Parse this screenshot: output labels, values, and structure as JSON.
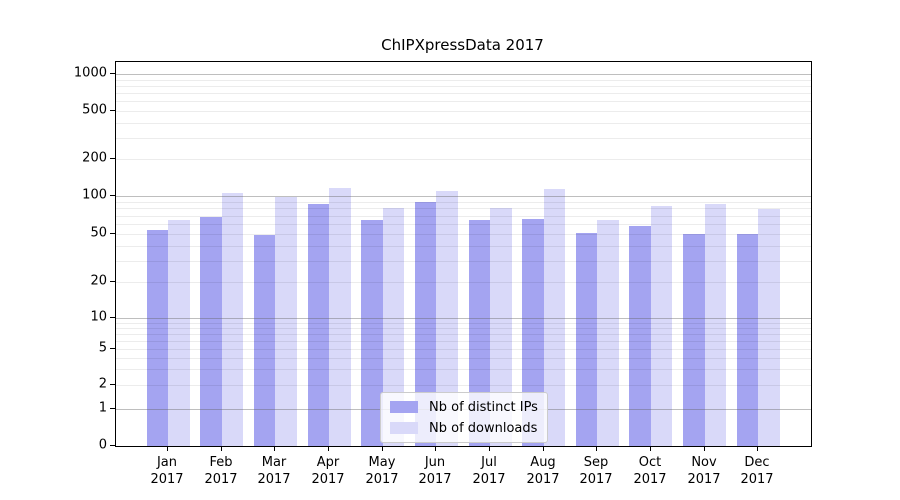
{
  "chart_data": {
    "type": "bar",
    "title": "ChIPXpressData 2017",
    "year_label": "2017",
    "categories": [
      "Jan",
      "Feb",
      "Mar",
      "Apr",
      "May",
      "Jun",
      "Jul",
      "Aug",
      "Sep",
      "Oct",
      "Nov",
      "Dec"
    ],
    "series": [
      {
        "name": "Nb of distinct IPs",
        "color": "#a4a4f1",
        "values": [
          54,
          68,
          49,
          87,
          64,
          89,
          64,
          66,
          51,
          58,
          50,
          50
        ]
      },
      {
        "name": "Nb of downloads",
        "color": "#d9d9f9",
        "values": [
          65,
          106,
          98,
          117,
          80,
          109,
          81,
          114,
          64,
          84,
          86,
          79
        ]
      }
    ],
    "yscale": "symlog",
    "yticks": [
      0,
      1,
      2,
      5,
      10,
      20,
      50,
      100,
      200,
      500,
      1000
    ],
    "ylim": [
      0,
      1000
    ],
    "grid": "on",
    "legend_position": "lower center",
    "colors": {
      "axis": "#000000",
      "major_grid": "#bbbbbb",
      "minor_grid": "#ebebeb",
      "background": "#ffffff"
    }
  }
}
